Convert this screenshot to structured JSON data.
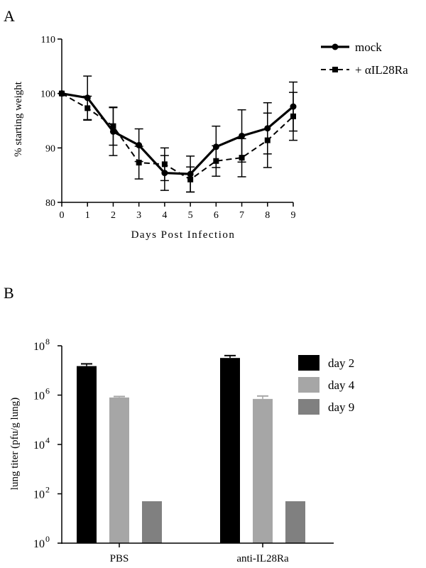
{
  "panels": {
    "a_letter": "A",
    "b_letter": "B"
  },
  "chart_data": [
    {
      "type": "line",
      "title": "",
      "xlabel": "Days Post Infection",
      "ylabel": "% starting weight",
      "xlim": [
        0,
        9
      ],
      "ylim": [
        80,
        110
      ],
      "x_ticks": [
        "0",
        "1",
        "2",
        "3",
        "4",
        "5",
        "6",
        "7",
        "8",
        "9"
      ],
      "y_ticks": [
        "80",
        "90",
        "100",
        "110"
      ],
      "x": [
        0,
        1,
        2,
        3,
        4,
        5,
        6,
        7,
        8,
        9
      ],
      "legend_position": "top-right",
      "series": [
        {
          "name": "mock",
          "line_style": "solid",
          "marker": "circle",
          "values": [
            100.0,
            99.2,
            93.0,
            90.5,
            85.4,
            85.2,
            90.2,
            92.2,
            93.6,
            97.6
          ],
          "errors": [
            0,
            4.0,
            4.4,
            3.0,
            3.2,
            3.3,
            3.8,
            4.8,
            4.7,
            4.5
          ]
        },
        {
          "name": "+ αIL28Ra",
          "line_style": "dashed",
          "marker": "square",
          "values": [
            100.0,
            97.3,
            94.0,
            87.3,
            87.0,
            84.2,
            87.6,
            88.2,
            91.4,
            95.8
          ],
          "errors": [
            0,
            2.2,
            3.5,
            3.0,
            3.0,
            2.3,
            2.8,
            3.5,
            5.0,
            4.4
          ]
        }
      ]
    },
    {
      "type": "bar",
      "title": "",
      "xlabel": "",
      "ylabel": "lung titer (pfu/g lung)",
      "y_scale": "log10",
      "ylim": [
        1,
        100000000
      ],
      "y_ticks": [
        {
          "base": "10",
          "exp": "0"
        },
        {
          "base": "10",
          "exp": "2"
        },
        {
          "base": "10",
          "exp": "4"
        },
        {
          "base": "10",
          "exp": "6"
        },
        {
          "base": "10",
          "exp": "8"
        }
      ],
      "categories": [
        "PBS",
        "anti-IL28Ra"
      ],
      "legend_position": "top-right",
      "series": [
        {
          "name": "day 2",
          "color": "#000000",
          "values": [
            15000000,
            32000000
          ],
          "errors_upper": [
            18500000,
            40000000
          ]
        },
        {
          "name": "day 4",
          "color": "#a6a6a6",
          "values": [
            800000,
            700000
          ],
          "errors_upper": [
            880000,
            920000
          ]
        },
        {
          "name": "day 9",
          "color": "#808080",
          "values": [
            50,
            50
          ],
          "errors_upper": [
            50,
            50
          ]
        }
      ]
    }
  ]
}
